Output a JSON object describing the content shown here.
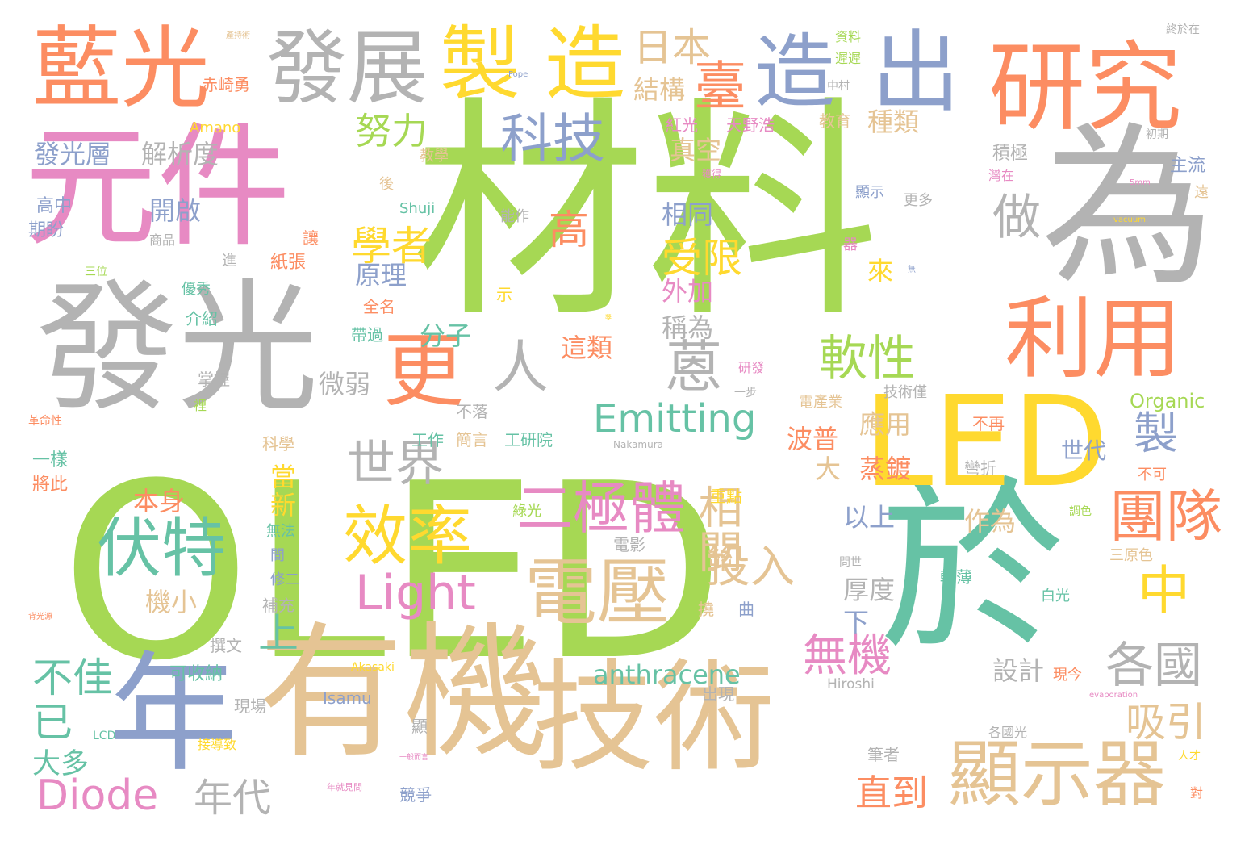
{
  "colors": {
    "green": "#a6d854",
    "teal": "#66c2a5",
    "orange": "#fc8d62",
    "pink": "#e78ac3",
    "blue": "#8da0cb",
    "tan": "#e5c494",
    "gray": "#b3b3b3",
    "yellow": "#ffd92f"
  },
  "words": [
    {
      "text": "OLED",
      "color": "#a6d854",
      "vertical": false
    },
    {
      "text": "材料",
      "color": "#a6d854",
      "vertical": false
    },
    {
      "text": "元件",
      "color": "#e78ac3",
      "vertical": false
    },
    {
      "text": "發光",
      "color": "#b3b3b3",
      "vertical": false
    },
    {
      "text": "有機",
      "color": "#e5c494",
      "vertical": false
    },
    {
      "text": "於",
      "color": "#66c2a5",
      "vertical": false
    },
    {
      "text": "為",
      "color": "#b3b3b3",
      "vertical": false
    },
    {
      "text": "技術",
      "color": "#e5c494",
      "vertical": false
    },
    {
      "text": "LED",
      "color": "#ffd92f",
      "vertical": false
    },
    {
      "text": "年",
      "color": "#8da0cb",
      "vertical": false
    },
    {
      "text": "藍光",
      "color": "#fc8d62",
      "vertical": false
    },
    {
      "text": "研究",
      "color": "#fc8d62",
      "vertical": false
    },
    {
      "text": "發展",
      "color": "#b3b3b3",
      "vertical": false
    },
    {
      "text": "製",
      "color": "#ffd92f",
      "vertical": false
    },
    {
      "text": "造",
      "color": "#ffd92f",
      "vertical": false
    },
    {
      "text": "造",
      "color": "#8da0cb",
      "vertical": false
    },
    {
      "text": "出",
      "color": "#8da0cb",
      "vertical": false
    },
    {
      "text": "利用",
      "color": "#fc8d62",
      "vertical": false
    },
    {
      "text": "顯示器",
      "color": "#e5c494",
      "vertical": false
    },
    {
      "text": "電壓",
      "color": "#e5c494",
      "vertical": false
    },
    {
      "text": "伏特",
      "color": "#66c2a5",
      "vertical": false
    },
    {
      "text": "效率",
      "color": "#ffd92f",
      "vertical": false
    },
    {
      "text": "二極體",
      "color": "#e78ac3",
      "vertical": false
    },
    {
      "text": "更",
      "color": "#fc8d62",
      "vertical": false
    },
    {
      "text": "人",
      "color": "#b3b3b3",
      "vertical": false
    },
    {
      "text": "蒽",
      "color": "#b3b3b3",
      "vertical": false
    },
    {
      "text": "Emitting",
      "color": "#66c2a5",
      "vertical": false
    },
    {
      "text": "Light",
      "color": "#e78ac3",
      "vertical": false
    },
    {
      "text": "Diode",
      "color": "#e78ac3",
      "vertical": false
    },
    {
      "text": "世界",
      "color": "#b3b3b3",
      "vertical": false
    },
    {
      "text": "科技",
      "color": "#8da0cb",
      "vertical": false
    },
    {
      "text": "臺",
      "color": "#fc8d62",
      "vertical": false
    },
    {
      "text": "團隊",
      "color": "#fc8d62",
      "vertical": false
    },
    {
      "text": "中",
      "color": "#ffd92f",
      "vertical": false
    },
    {
      "text": "各國",
      "color": "#b3b3b3",
      "vertical": false
    },
    {
      "text": "軟性",
      "color": "#a6d854",
      "vertical": false
    },
    {
      "text": "做",
      "color": "#b3b3b3",
      "vertical": false
    },
    {
      "text": "相關",
      "color": "#e5c494",
      "vertical": true
    },
    {
      "text": "投入",
      "color": "#e5c494",
      "vertical": false
    },
    {
      "text": "學者",
      "color": "#ffd92f",
      "vertical": false
    },
    {
      "text": "受限",
      "color": "#ffd92f",
      "vertical": false
    },
    {
      "text": "高",
      "color": "#fc8d62",
      "vertical": false
    },
    {
      "text": "日本",
      "color": "#e5c494",
      "vertical": false
    },
    {
      "text": "努力",
      "color": "#a6d854",
      "vertical": false
    },
    {
      "text": "無機",
      "color": "#e78ac3",
      "vertical": false
    },
    {
      "text": "anthracene",
      "color": "#66c2a5",
      "vertical": false
    },
    {
      "text": "年代",
      "color": "#b3b3b3",
      "vertical": false
    },
    {
      "text": "直到",
      "color": "#fc8d62",
      "vertical": false
    },
    {
      "text": "吸引",
      "color": "#e5c494",
      "vertical": false
    },
    {
      "text": "不佳",
      "color": "#66c2a5",
      "vertical": false
    },
    {
      "text": "已",
      "color": "#66c2a5",
      "vertical": false
    },
    {
      "text": "上",
      "color": "#66c2a5",
      "vertical": false
    },
    {
      "text": "大多",
      "color": "#66c2a5",
      "vertical": false
    },
    {
      "text": "製",
      "color": "#8da0cb",
      "vertical": false
    },
    {
      "text": "發光層",
      "color": "#8da0cb",
      "vertical": false
    },
    {
      "text": "解析度",
      "color": "#b3b3b3",
      "vertical": false
    },
    {
      "text": "開啟",
      "color": "#8da0cb",
      "vertical": false
    },
    {
      "text": "本身",
      "color": "#fc8d62",
      "vertical": false
    },
    {
      "text": "機小",
      "color": "#e5c494",
      "vertical": false
    },
    {
      "text": "結構",
      "color": "#e5c494",
      "vertical": false
    },
    {
      "text": "真空",
      "color": "#e5c494",
      "vertical": false
    },
    {
      "text": "種類",
      "color": "#e5c494",
      "vertical": false
    },
    {
      "text": "相同",
      "color": "#8da0cb",
      "vertical": false
    },
    {
      "text": "外加",
      "color": "#e78ac3",
      "vertical": false
    },
    {
      "text": "稱為",
      "color": "#b3b3b3",
      "vertical": false
    },
    {
      "text": "原理",
      "color": "#8da0cb",
      "vertical": false
    },
    {
      "text": "分子",
      "color": "#66c2a5",
      "vertical": false
    },
    {
      "text": "微弱",
      "color": "#b3b3b3",
      "vertical": false
    },
    {
      "text": "這類",
      "color": "#fc8d62",
      "vertical": false
    },
    {
      "text": "應用",
      "color": "#e5c494",
      "vertical": false
    },
    {
      "text": "波普",
      "color": "#fc8d62",
      "vertical": false
    },
    {
      "text": "蒸鍍",
      "color": "#fc8d62",
      "vertical": false
    },
    {
      "text": "以上",
      "color": "#8da0cb",
      "vertical": false
    },
    {
      "text": "作為",
      "color": "#e5c494",
      "vertical": false
    },
    {
      "text": "厚度",
      "color": "#b3b3b3",
      "vertical": false
    },
    {
      "text": "設計",
      "color": "#b3b3b3",
      "vertical": false
    },
    {
      "text": "來",
      "color": "#ffd92f",
      "vertical": false
    },
    {
      "text": "大",
      "color": "#e5c494",
      "vertical": false
    },
    {
      "text": "當",
      "color": "#ffd92f",
      "vertical": false
    },
    {
      "text": "新",
      "color": "#ffd92f",
      "vertical": false
    },
    {
      "text": "下",
      "color": "#8da0cb",
      "vertical": false
    },
    {
      "text": "世代",
      "color": "#8da0cb",
      "vertical": false
    },
    {
      "text": "主流",
      "color": "#8da0cb",
      "vertical": false
    },
    {
      "text": "積極",
      "color": "#b3b3b3",
      "vertical": false
    },
    {
      "text": "紅光",
      "color": "#e78ac3",
      "vertical": false
    },
    {
      "text": "天野浩",
      "color": "#e78ac3",
      "vertical": false
    },
    {
      "text": "教育",
      "color": "#e5c494",
      "vertical": false
    },
    {
      "text": "赤崎勇",
      "color": "#fc8d62",
      "vertical": false
    },
    {
      "text": "Amano",
      "color": "#ffd92f",
      "vertical": false
    },
    {
      "text": "高中",
      "color": "#8da0cb",
      "vertical": false
    },
    {
      "text": "期盼",
      "color": "#8da0cb",
      "vertical": false
    },
    {
      "text": "Shuji",
      "color": "#66c2a5",
      "vertical": false
    },
    {
      "text": "能作",
      "color": "#b3b3b3",
      "vertical": false
    },
    {
      "text": "讓",
      "color": "#fc8d62",
      "vertical": false
    },
    {
      "text": "紙張",
      "color": "#fc8d62",
      "vertical": false
    },
    {
      "text": "全名",
      "color": "#fc8d62",
      "vertical": false
    },
    {
      "text": "帶過",
      "color": "#66c2a5",
      "vertical": false
    },
    {
      "text": "優秀",
      "color": "#66c2a5",
      "vertical": false
    },
    {
      "text": "介紹",
      "color": "#66c2a5",
      "vertical": false
    },
    {
      "text": "掌握",
      "color": "#b3b3b3",
      "vertical": false
    },
    {
      "text": "不落",
      "color": "#b3b3b3",
      "vertical": false
    },
    {
      "text": "工作",
      "color": "#66c2a5",
      "vertical": false
    },
    {
      "text": "簡言",
      "color": "#e5c494",
      "vertical": false
    },
    {
      "text": "工研院",
      "color": "#66c2a5",
      "vertical": false
    },
    {
      "text": "科學",
      "color": "#e5c494",
      "vertical": false
    },
    {
      "text": "一樣",
      "color": "#66c2a5",
      "vertical": false
    },
    {
      "text": "將此",
      "color": "#fc8d62",
      "vertical": false
    },
    {
      "text": "Organic",
      "color": "#a6d854",
      "vertical": false
    },
    {
      "text": "Nakamura",
      "color": "#b3b3b3",
      "vertical": false
    },
    {
      "text": "Akasaki",
      "color": "#ffd92f",
      "vertical": false
    },
    {
      "text": "Hiroshi",
      "color": "#b3b3b3",
      "vertical": false
    },
    {
      "text": "Isamu",
      "color": "#8da0cb",
      "vertical": false
    },
    {
      "text": "LCD",
      "color": "#66c2a5",
      "vertical": false
    },
    {
      "text": "不再",
      "color": "#fc8d62",
      "vertical": false
    },
    {
      "text": "彎折",
      "color": "#b3b3b3",
      "vertical": false
    },
    {
      "text": "不可",
      "color": "#fc8d62",
      "vertical": false
    },
    {
      "text": "輕薄",
      "color": "#66c2a5",
      "vertical": false
    },
    {
      "text": "白光",
      "color": "#66c2a5",
      "vertical": false
    },
    {
      "text": "三原色",
      "color": "#e5c494",
      "vertical": false
    },
    {
      "text": "調色",
      "color": "#a6d854",
      "vertical": false
    },
    {
      "text": "現今",
      "color": "#fc8d62",
      "vertical": false
    },
    {
      "text": "各國光",
      "color": "#b3b3b3",
      "vertical": false
    },
    {
      "text": "人才",
      "color": "#ffd92f",
      "vertical": false
    },
    {
      "text": "對",
      "color": "#fc8d62",
      "vertical": false
    },
    {
      "text": "筆者",
      "color": "#b3b3b3",
      "vertical": false
    },
    {
      "text": "競爭",
      "color": "#8da0cb",
      "vertical": false
    },
    {
      "text": "顯",
      "color": "#b3b3b3",
      "vertical": false
    },
    {
      "text": "出現",
      "color": "#b3b3b3",
      "vertical": false
    },
    {
      "text": "現場",
      "color": "#b3b3b3",
      "vertical": false
    },
    {
      "text": "可收納",
      "color": "#66c2a5",
      "vertical": false
    },
    {
      "text": "撰文",
      "color": "#b3b3b3",
      "vertical": false
    },
    {
      "text": "補充",
      "color": "#b3b3b3",
      "vertical": false
    },
    {
      "text": "修二",
      "color": "#8da0cb",
      "vertical": false
    },
    {
      "text": "間",
      "color": "#8da0cb",
      "vertical": false
    },
    {
      "text": "無法",
      "color": "#66c2a5",
      "vertical": false
    },
    {
      "text": "電影",
      "color": "#b3b3b3",
      "vertical": false
    },
    {
      "text": "綠光",
      "color": "#a6d854",
      "vertical": false
    },
    {
      "text": "重點",
      "color": "#ffd92f",
      "vertical": false
    },
    {
      "text": "撓",
      "color": "#e5c494",
      "vertical": false
    },
    {
      "text": "曲",
      "color": "#8da0cb",
      "vertical": false
    },
    {
      "text": "電產業",
      "color": "#e5c494",
      "vertical": false
    },
    {
      "text": "技術僅",
      "color": "#b3b3b3",
      "vertical": false
    },
    {
      "text": "一步",
      "color": "#b3b3b3",
      "vertical": false
    },
    {
      "text": "研發",
      "color": "#e78ac3",
      "vertical": false
    },
    {
      "text": "示",
      "color": "#ffd92f",
      "vertical": false
    },
    {
      "text": "器",
      "color": "#e78ac3",
      "vertical": false
    },
    {
      "text": "更多",
      "color": "#b3b3b3",
      "vertical": false
    },
    {
      "text": "顯示",
      "color": "#8da0cb",
      "vertical": false
    },
    {
      "text": "後",
      "color": "#e5c494",
      "vertical": false
    },
    {
      "text": "教學",
      "color": "#e5c494",
      "vertical": false
    },
    {
      "text": "進",
      "color": "#b3b3b3",
      "vertical": false
    },
    {
      "text": "商品",
      "color": "#b3b3b3",
      "vertical": false
    },
    {
      "text": "遠",
      "color": "#e5c494",
      "vertical": false
    },
    {
      "text": "灣在",
      "color": "#e78ac3",
      "vertical": false
    },
    {
      "text": "初期",
      "color": "#b3b3b3",
      "vertical": false
    },
    {
      "text": "中村",
      "color": "#b3b3b3",
      "vertical": false
    },
    {
      "text": "遲遲",
      "color": "#a6d854",
      "vertical": false
    },
    {
      "text": "資料",
      "color": "#a6d854",
      "vertical": false
    },
    {
      "text": "終於在",
      "color": "#b3b3b3",
      "vertical": false
    },
    {
      "text": "三位",
      "color": "#a6d854",
      "vertical": false
    },
    {
      "text": "革命性",
      "color": "#fc8d62",
      "vertical": false
    },
    {
      "text": "裡",
      "color": "#a6d854",
      "vertical": false
    },
    {
      "text": "獲得",
      "color": "#e78ac3",
      "vertical": false
    },
    {
      "text": "背光源",
      "color": "#fc8d62",
      "vertical": false
    },
    {
      "text": "產持術",
      "color": "#e5c494",
      "vertical": false
    },
    {
      "text": "Pope",
      "color": "#8da0cb",
      "vertical": false
    },
    {
      "text": "vacuum",
      "color": "#ffd92f",
      "vertical": false
    },
    {
      "text": "5mm",
      "color": "#e78ac3",
      "vertical": false
    },
    {
      "text": "evaporation",
      "color": "#e78ac3",
      "vertical": false
    },
    {
      "text": "接導致",
      "color": "#ffd92f",
      "vertical": false
    },
    {
      "text": "獎",
      "color": "#ffd92f",
      "vertical": false
    },
    {
      "text": "無",
      "color": "#8da0cb",
      "vertical": false
    },
    {
      "text": "一般而言",
      "color": "#e78ac3",
      "vertical": false
    },
    {
      "text": "年就見問",
      "color": "#e78ac3",
      "vertical": false
    },
    {
      "text": "問世",
      "color": "#b3b3b3",
      "vertical": false
    }
  ]
}
